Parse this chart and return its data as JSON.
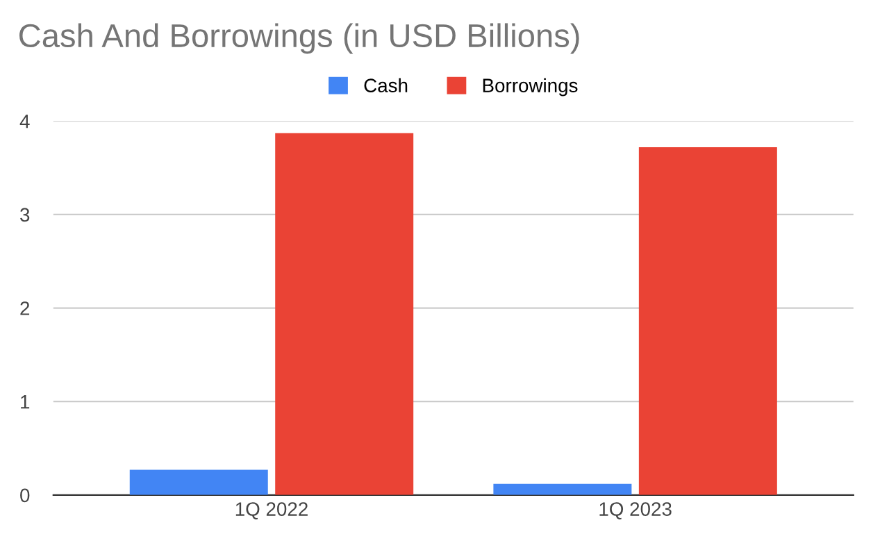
{
  "chart_data": {
    "type": "bar",
    "title": "Cash And Borrowings (in USD Billions)",
    "categories": [
      "1Q 2022",
      "1Q 2023"
    ],
    "series": [
      {
        "name": "Cash",
        "color": "#4285f4",
        "values": [
          0.27,
          0.12
        ]
      },
      {
        "name": "Borrowings",
        "color": "#ea4335",
        "values": [
          3.87,
          3.72
        ]
      }
    ],
    "ylim": [
      0,
      4
    ],
    "yticks": [
      0,
      1,
      2,
      3,
      4
    ],
    "grid": "y",
    "legend": "top"
  }
}
